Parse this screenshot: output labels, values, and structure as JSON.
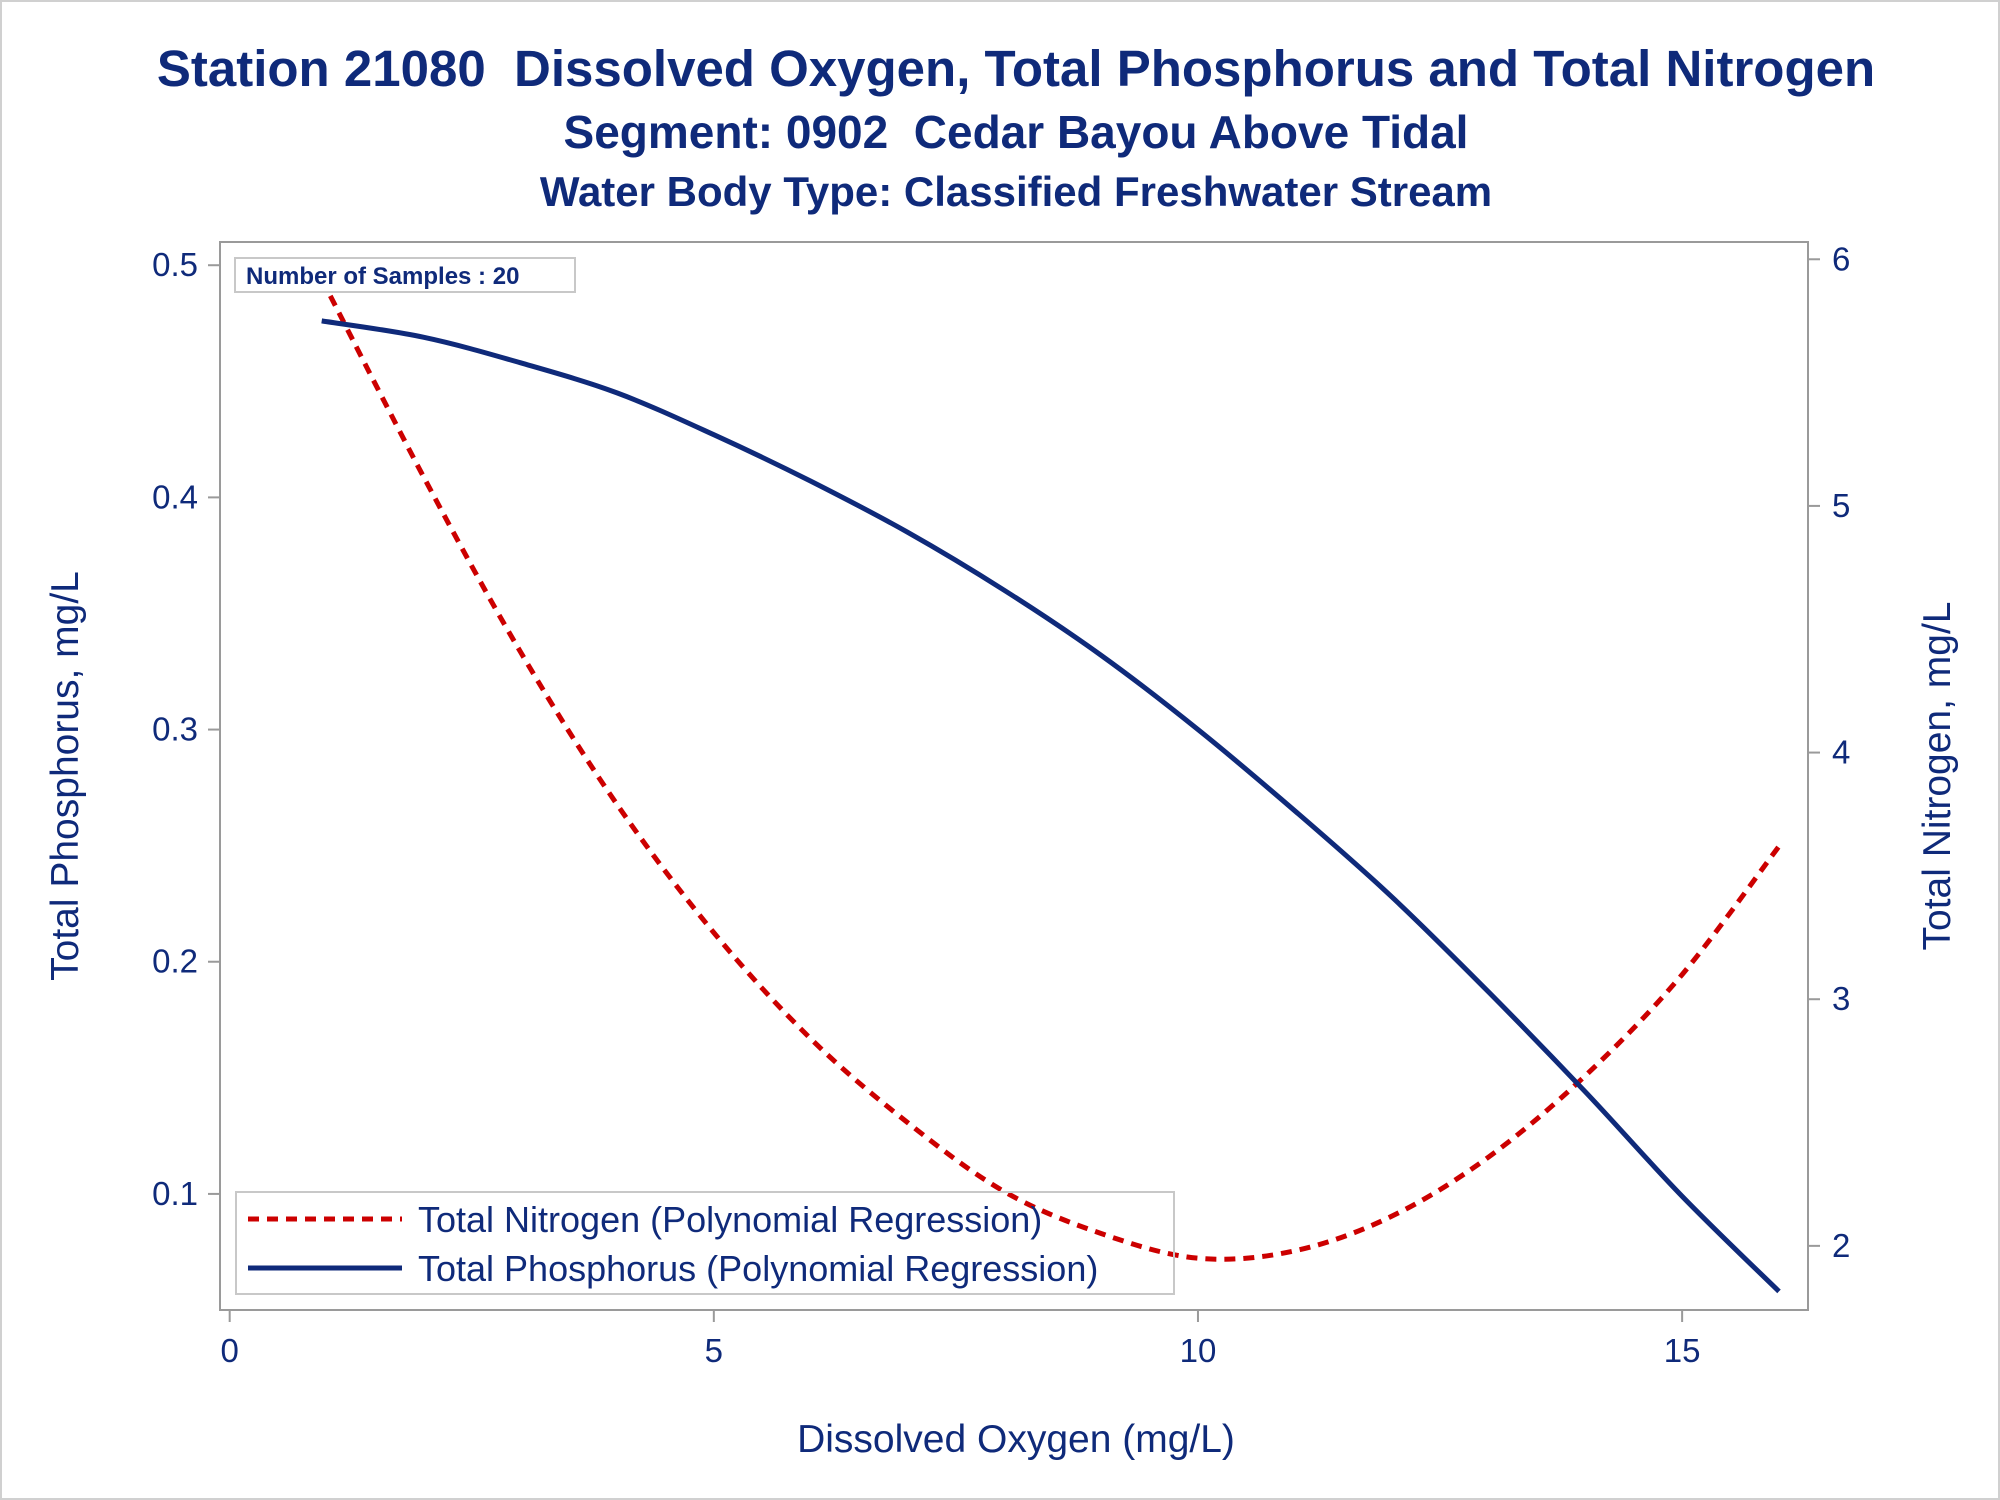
{
  "chart_data": {
    "type": "line",
    "title": "Station 21080  Dissolved Oxygen, Total Phosphorus and Total Nitrogen",
    "subtitle": "Segment: 0902  Cedar Bayou Above Tidal",
    "subtitle2": "Water Body Type: Classified Freshwater Stream",
    "xlabel": "Dissolved Oxygen (mg/L)",
    "ylabel": "Total Phosphorus, mg/L",
    "y2label": "Total Nitrogen, mg/L",
    "xlim": [
      -0.1,
      16.3
    ],
    "ylim": [
      0.05,
      0.51
    ],
    "y2lim": [
      1.74,
      6.07
    ],
    "xticks": [
      0,
      5,
      10,
      15
    ],
    "yticks": [
      0.1,
      0.2,
      0.3,
      0.4,
      0.5
    ],
    "y2ticks": [
      2,
      3,
      4,
      5,
      6
    ],
    "x_tick_labels": [
      "0",
      "5",
      "10",
      "15"
    ],
    "y_tick_labels": [
      "0.1",
      "0.2",
      "0.3",
      "0.4",
      "0.5"
    ],
    "y2_tick_labels": [
      "2",
      "3",
      "4",
      "5",
      "6"
    ],
    "annotation": "Number of Samples : 20",
    "legend_position": "bottom-left",
    "grid": false,
    "series": [
      {
        "name": "Total Nitrogen (Polynomial Regression)",
        "axis": "right",
        "style": "dashed",
        "color": "#cc0000",
        "x": [
          0.95,
          2,
          3,
          4,
          5,
          6,
          7,
          8,
          9,
          10,
          11,
          12,
          13,
          14,
          15,
          16
        ],
        "y": [
          5.92,
          5.12,
          4.41,
          3.79,
          3.27,
          2.84,
          2.5,
          2.22,
          2.05,
          1.95,
          1.98,
          2.12,
          2.36,
          2.69,
          3.1,
          3.62
        ]
      },
      {
        "name": "Total Phosphorus (Polynomial Regression)",
        "axis": "left",
        "style": "solid",
        "color": "#0f2a7a",
        "x": [
          0.95,
          2,
          3,
          4,
          5,
          6,
          7,
          8,
          9,
          10,
          11,
          12,
          13,
          14,
          15,
          16
        ],
        "y": [
          0.476,
          0.469,
          0.458,
          0.445,
          0.427,
          0.407,
          0.385,
          0.36,
          0.332,
          0.3,
          0.265,
          0.228,
          0.187,
          0.144,
          0.099,
          0.058
        ]
      }
    ]
  },
  "colors": {
    "text": "#0f2a7a",
    "frame": "#9a9a9a",
    "legend_border": "#c8c8c8"
  }
}
